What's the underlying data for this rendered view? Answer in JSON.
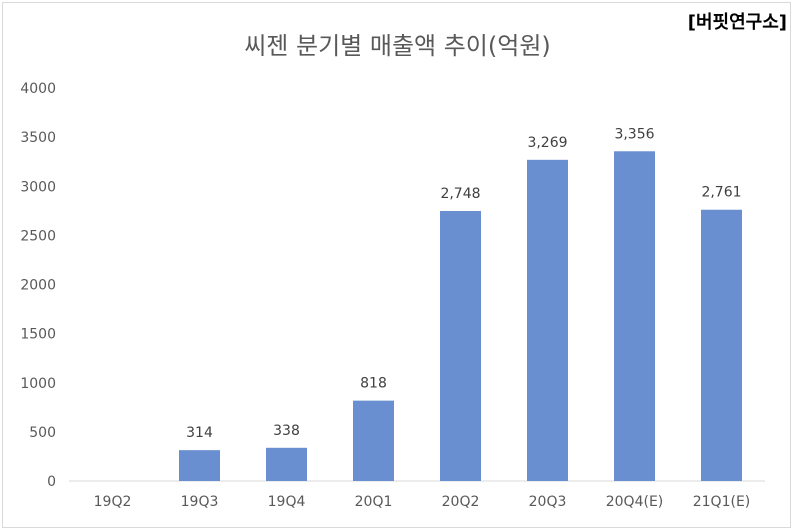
{
  "watermark": "[버핏연구소]",
  "chart_data": {
    "type": "bar",
    "title": "씨젠 분기별 매출액 추이(억원)",
    "categories": [
      "19Q2",
      "19Q3",
      "19Q4",
      "20Q1",
      "20Q2",
      "20Q3",
      "20Q4(E)",
      "21Q1(E)"
    ],
    "values": [
      null,
      314,
      338,
      818,
      2748,
      3269,
      3356,
      2761
    ],
    "data_labels": [
      "",
      "314",
      "338",
      "818",
      "2,748",
      "3,269",
      "3,356",
      "2,761"
    ],
    "ylim": [
      0,
      4000
    ],
    "yticks": [
      0,
      500,
      1000,
      1500,
      2000,
      2500,
      3000,
      3500,
      4000
    ],
    "xlabel": "",
    "ylabel": "",
    "grid": false,
    "bar_color": "#6a8fd0",
    "axis_color": "#d9d9d9"
  }
}
